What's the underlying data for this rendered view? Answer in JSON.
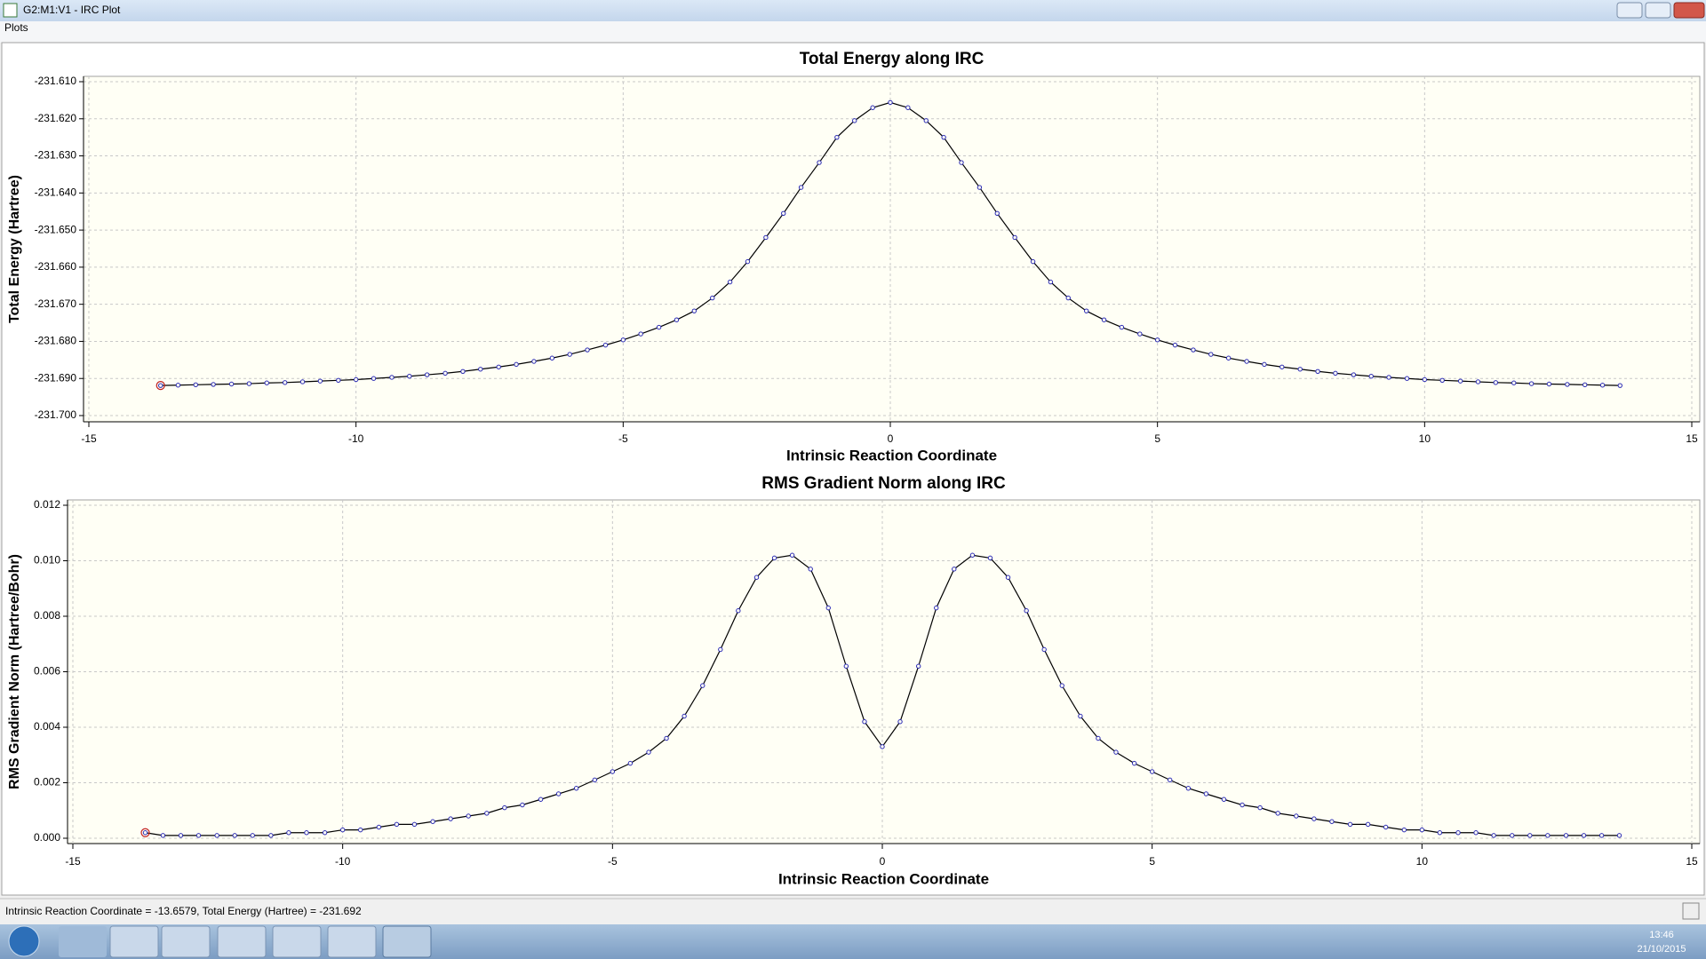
{
  "window": {
    "title": "G2:M1:V1 - IRC Plot"
  },
  "menu": [
    "Plots"
  ],
  "status": "Intrinsic Reaction Coordinate = -13.6579, Total Energy (Hartree) = -231.692",
  "clock": {
    "time": "13:46",
    "date": "21/10/2015"
  },
  "chart_data": [
    {
      "type": "line",
      "title": "Total Energy along IRC",
      "xlabel": "Intrinsic Reaction Coordinate",
      "ylabel": "Total Energy (Hartree)",
      "x": [
        -13.6579,
        -13.33,
        -13,
        -12.67,
        -12.33,
        -12,
        -11.67,
        -11.33,
        -11,
        -10.67,
        -10.33,
        -10,
        -9.67,
        -9.33,
        -9,
        -8.67,
        -8.33,
        -8,
        -7.67,
        -7.33,
        -7,
        -6.67,
        -6.33,
        -6,
        -5.67,
        -5.33,
        -5,
        -4.67,
        -4.33,
        -4,
        -3.67,
        -3.33,
        -3,
        -2.67,
        -2.33,
        -2,
        -1.67,
        -1.33,
        -1,
        -0.67,
        -0.33,
        0,
        0.33,
        0.67,
        1,
        1.33,
        1.67,
        2,
        2.33,
        2.67,
        3,
        3.33,
        3.67,
        4,
        4.33,
        4.67,
        5,
        5.33,
        5.67,
        6,
        6.33,
        6.67,
        7,
        7.33,
        7.67,
        8,
        8.33,
        8.67,
        9,
        9.33,
        9.67,
        10,
        10.33,
        10.67,
        11,
        11.33,
        11.67,
        12,
        12.33,
        12.67,
        13,
        13.33,
        13.6579
      ],
      "values": [
        -231.6919,
        -231.6918,
        -231.6917,
        -231.6916,
        -231.6915,
        -231.6914,
        -231.6912,
        -231.6911,
        -231.6909,
        -231.6907,
        -231.6905,
        -231.6903,
        -231.69,
        -231.6897,
        -231.6894,
        -231.689,
        -231.6886,
        -231.6881,
        -231.6875,
        -231.6869,
        -231.6862,
        -231.6854,
        -231.6845,
        -231.6835,
        -231.6823,
        -231.681,
        -231.6796,
        -231.678,
        -231.6762,
        -231.6742,
        -231.6718,
        -231.6683,
        -231.664,
        -231.6585,
        -231.652,
        -231.6455,
        -231.6385,
        -231.6318,
        -231.625,
        -231.6205,
        -231.617,
        -231.6156,
        -231.617,
        -231.6205,
        -231.625,
        -231.6318,
        -231.6385,
        -231.6455,
        -231.652,
        -231.6585,
        -231.664,
        -231.6683,
        -231.6718,
        -231.6742,
        -231.6762,
        -231.678,
        -231.6796,
        -231.681,
        -231.6823,
        -231.6835,
        -231.6845,
        -231.6854,
        -231.6862,
        -231.6869,
        -231.6875,
        -231.6881,
        -231.6886,
        -231.689,
        -231.6894,
        -231.6897,
        -231.69,
        -231.6903,
        -231.6905,
        -231.6907,
        -231.6909,
        -231.6911,
        -231.6912,
        -231.6914,
        -231.6915,
        -231.6916,
        -231.6917,
        -231.6918,
        -231.6919
      ],
      "color": "#000000",
      "marker_color": "#2a2ab4",
      "xlim": [
        -15,
        15
      ],
      "xticks": [
        -15,
        -10,
        -5,
        0,
        5,
        10,
        15
      ],
      "ylim": [
        -231.7,
        -231.61
      ],
      "yticks": [
        {
          "value": -231.61,
          "label": "-231.610"
        },
        {
          "value": -231.62,
          "label": "-231.620"
        },
        {
          "value": -231.63,
          "label": "-231.630"
        },
        {
          "value": -231.64,
          "label": "-231.640"
        },
        {
          "value": -231.65,
          "label": "-231.650"
        },
        {
          "value": -231.66,
          "label": "-231.660"
        },
        {
          "value": -231.67,
          "label": "-231.670"
        },
        {
          "value": -231.68,
          "label": "-231.680"
        },
        {
          "value": -231.69,
          "label": "-231.690"
        },
        {
          "value": -231.7,
          "label": "-231.700"
        }
      ],
      "grid": true
    },
    {
      "type": "line",
      "title": "RMS Gradient Norm along IRC",
      "xlabel": "Intrinsic Reaction Coordinate",
      "ylabel": "RMS Gradient Norm (Hartree/Bohr)",
      "x": [
        -13.6579,
        -13.33,
        -13,
        -12.67,
        -12.33,
        -12,
        -11.67,
        -11.33,
        -11,
        -10.67,
        -10.33,
        -10,
        -9.67,
        -9.33,
        -9,
        -8.67,
        -8.33,
        -8,
        -7.67,
        -7.33,
        -7,
        -6.67,
        -6.33,
        -6,
        -5.67,
        -5.33,
        -5,
        -4.67,
        -4.33,
        -4,
        -3.67,
        -3.33,
        -3,
        -2.67,
        -2.33,
        -2,
        -1.67,
        -1.33,
        -1,
        -0.67,
        -0.33,
        0,
        0.33,
        0.67,
        1,
        1.33,
        1.67,
        2,
        2.33,
        2.67,
        3,
        3.33,
        3.67,
        4,
        4.33,
        4.67,
        5,
        5.33,
        5.67,
        6,
        6.33,
        6.67,
        7,
        7.33,
        7.67,
        8,
        8.33,
        8.67,
        9,
        9.33,
        9.67,
        10,
        10.33,
        10.67,
        11,
        11.33,
        11.67,
        12,
        12.33,
        12.67,
        13,
        13.33,
        13.6579
      ],
      "values": [
        0.0002,
        0.0001,
        0.0001,
        0.0001,
        0.0001,
        0.0001,
        0.0001,
        0.0001,
        0.0002,
        0.0002,
        0.0002,
        0.0003,
        0.0003,
        0.0004,
        0.0005,
        0.0005,
        0.0006,
        0.0007,
        0.0008,
        0.0009,
        0.0011,
        0.0012,
        0.0014,
        0.0016,
        0.0018,
        0.0021,
        0.0024,
        0.0027,
        0.0031,
        0.0036,
        0.0044,
        0.0055,
        0.0068,
        0.0082,
        0.0094,
        0.0101,
        0.0102,
        0.0097,
        0.0083,
        0.0062,
        0.0042,
        0.0033,
        0.0042,
        0.0062,
        0.0083,
        0.0097,
        0.0102,
        0.0101,
        0.0094,
        0.0082,
        0.0068,
        0.0055,
        0.0044,
        0.0036,
        0.0031,
        0.0027,
        0.0024,
        0.0021,
        0.0018,
        0.0016,
        0.0014,
        0.0012,
        0.0011,
        0.0009,
        0.0008,
        0.0007,
        0.0006,
        0.0005,
        0.0005,
        0.0004,
        0.0003,
        0.0003,
        0.0002,
        0.0002,
        0.0002,
        0.0001,
        0.0001,
        0.0001,
        0.0001,
        0.0001,
        0.0001,
        0.0001,
        0.0001
      ],
      "color": "#000000",
      "marker_color": "#2a2ab4",
      "xlim": [
        -15,
        15
      ],
      "xticks": [
        -15,
        -10,
        -5,
        0,
        5,
        10,
        15
      ],
      "ylim": [
        0,
        0.012
      ],
      "yticks": [
        {
          "value": 0,
          "label": "0.000"
        },
        0.002,
        0.004,
        0.006,
        0.008,
        {
          "value": 0.01,
          "label": "0.010"
        },
        0.012
      ],
      "grid": true
    }
  ]
}
